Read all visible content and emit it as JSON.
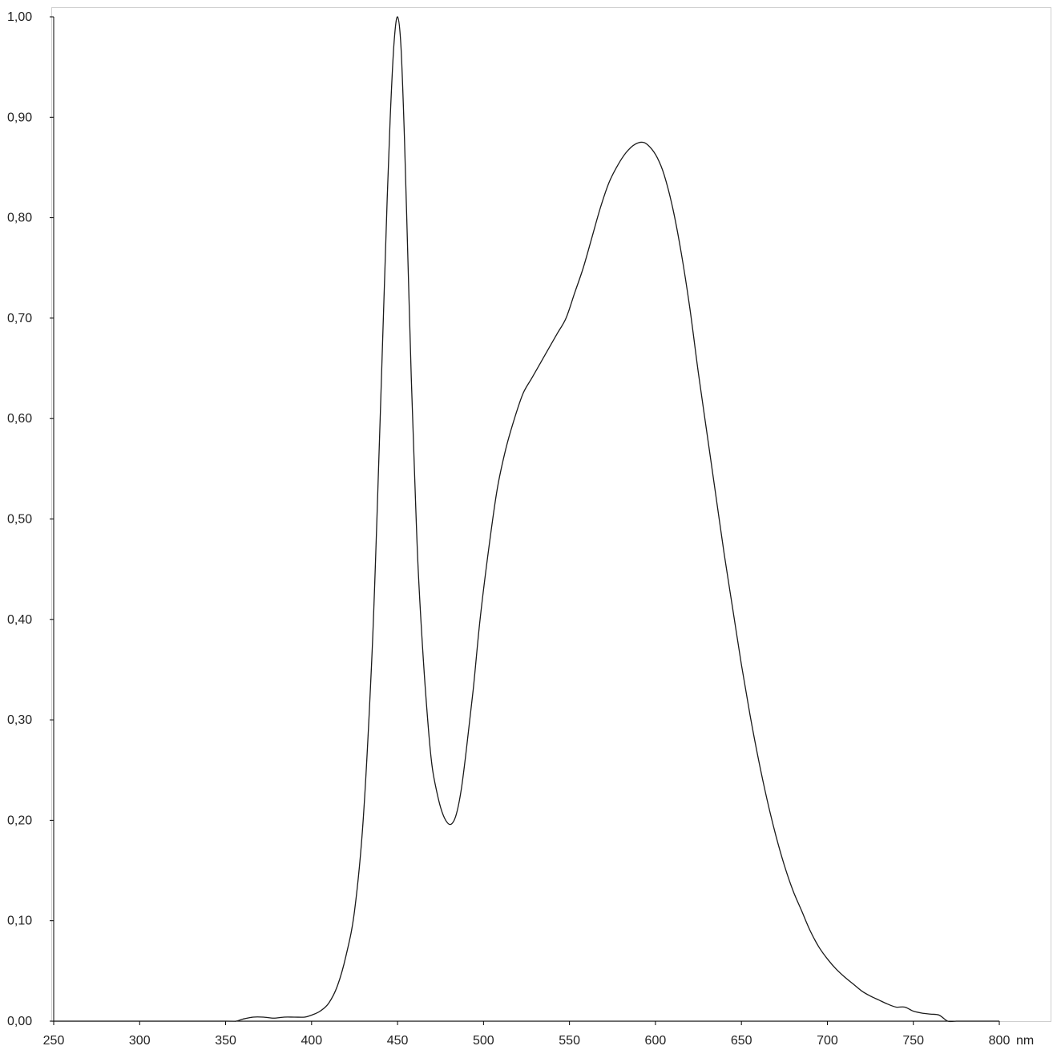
{
  "chart_data": {
    "type": "line",
    "title": "",
    "xlabel": "",
    "ylabel": "",
    "x_unit": "nm",
    "xlim": [
      250,
      800
    ],
    "ylim": [
      0.0,
      1.0
    ],
    "grid": false,
    "legend": "none",
    "colors": {
      "line": "#1a1a1a",
      "axis": "#000000",
      "frame": "#cfcfcf"
    },
    "x_ticks": [
      250,
      300,
      350,
      400,
      450,
      500,
      550,
      600,
      650,
      700,
      750,
      800
    ],
    "x_tick_labels": [
      "250",
      "300",
      "350",
      "400",
      "450",
      "500",
      "550",
      "600",
      "650",
      "700",
      "750",
      "800"
    ],
    "y_ticks": [
      0.0,
      0.1,
      0.2,
      0.3,
      0.4,
      0.5,
      0.6,
      0.7,
      0.8,
      0.9,
      1.0
    ],
    "y_tick_labels": [
      "0,00",
      "0,10",
      "0,20",
      "0,30",
      "0,40",
      "0,50",
      "0,60",
      "0,70",
      "0,80",
      "0,90",
      "1,00"
    ],
    "series": [
      {
        "x": [
          250,
          300,
          350,
          356,
          360,
          366,
          372,
          378,
          384,
          390,
          396,
          400,
          405,
          410,
          415,
          420,
          425,
          430,
          435,
          438,
          441,
          444,
          446,
          448,
          450,
          452,
          454,
          456,
          458,
          460,
          462,
          465,
          468,
          470,
          472,
          475,
          478,
          481,
          484,
          487,
          490,
          494,
          498,
          503,
          508,
          513,
          518,
          523,
          528,
          533,
          538,
          543,
          548,
          553,
          558,
          563,
          568,
          573,
          578,
          583,
          588,
          593,
          597,
          601,
          605,
          610,
          615,
          620,
          625,
          630,
          635,
          640,
          645,
          650,
          655,
          660,
          665,
          670,
          675,
          680,
          685,
          690,
          695,
          700,
          705,
          710,
          715,
          720,
          725,
          730,
          735,
          740,
          745,
          750,
          755,
          760,
          765,
          770,
          775,
          780,
          785,
          790,
          795,
          800
        ],
        "y": [
          0.0,
          0.0,
          0.0,
          0.0,
          0.002,
          0.004,
          0.004,
          0.003,
          0.004,
          0.004,
          0.004,
          0.006,
          0.01,
          0.018,
          0.035,
          0.065,
          0.11,
          0.2,
          0.36,
          0.5,
          0.66,
          0.82,
          0.91,
          0.975,
          1.0,
          0.97,
          0.88,
          0.76,
          0.64,
          0.54,
          0.45,
          0.36,
          0.29,
          0.255,
          0.235,
          0.213,
          0.2,
          0.196,
          0.205,
          0.23,
          0.27,
          0.33,
          0.4,
          0.47,
          0.53,
          0.57,
          0.6,
          0.625,
          0.64,
          0.655,
          0.67,
          0.685,
          0.7,
          0.725,
          0.75,
          0.78,
          0.81,
          0.835,
          0.852,
          0.865,
          0.873,
          0.875,
          0.87,
          0.86,
          0.843,
          0.81,
          0.765,
          0.71,
          0.645,
          0.585,
          0.525,
          0.465,
          0.41,
          0.355,
          0.305,
          0.26,
          0.22,
          0.185,
          0.155,
          0.13,
          0.11,
          0.09,
          0.074,
          0.062,
          0.052,
          0.044,
          0.037,
          0.03,
          0.025,
          0.021,
          0.017,
          0.014,
          0.014,
          0.01,
          0.008,
          0.007,
          0.006,
          0.0,
          0.0,
          0.0,
          0.0,
          0.0,
          0.0,
          0.0
        ]
      }
    ]
  }
}
